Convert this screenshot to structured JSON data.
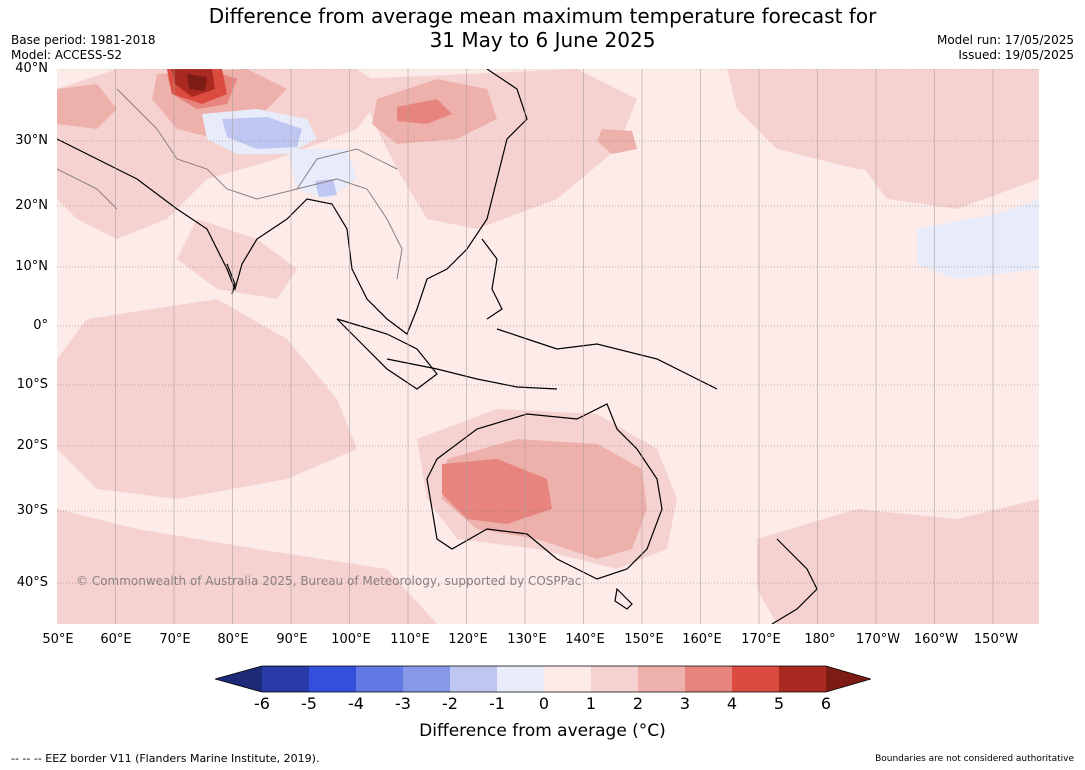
{
  "title": {
    "line1": "Difference from average mean maximum temperature forecast for",
    "line2": "31 May to 6 June 2025"
  },
  "meta_left": {
    "base_period": "Base period: 1981-2018",
    "model": "Model: ACCESS-S2"
  },
  "meta_right": {
    "model_run": "Model run: 17/05/2025",
    "issued": "Issued: 19/05/2025"
  },
  "map": {
    "lat_labels": [
      "40°N",
      "30°N",
      "20°N",
      "10°N",
      "0°",
      "10°S",
      "20°S",
      "30°S",
      "40°S"
    ],
    "lon_labels": [
      "50°E",
      "60°E",
      "70°E",
      "80°E",
      "90°E",
      "100°E",
      "110°E",
      "120°E",
      "130°E",
      "140°E",
      "150°E",
      "160°E",
      "170°E",
      "180°",
      "170°W",
      "160°W",
      "150°W"
    ],
    "copyright": "© Commonwealth of Australia 2025, Bureau of Meteorology, supported by COSPPac"
  },
  "colorbar": {
    "ticks": [
      "-6",
      "-5",
      "-4",
      "-3",
      "-2",
      "-1",
      "0",
      "1",
      "2",
      "3",
      "4",
      "5",
      "6"
    ],
    "colors": [
      "#283ba6",
      "#3350dd",
      "#6278e2",
      "#8898e8",
      "#bfc6f2",
      "#e8ebfa",
      "#fcebe9",
      "#f5d2cf",
      "#eeb0ab",
      "#e6847d",
      "#dc4b40",
      "#aa2a22"
    ],
    "under_color": "#1c2a78",
    "over_color": "#7d1c15",
    "label": "Difference from average (°C)"
  },
  "footer": {
    "left": "--  --  -- EEZ border V11 (Flanders Marine Institute, 2019).",
    "right": "Boundaries are not considered authoritative"
  }
}
